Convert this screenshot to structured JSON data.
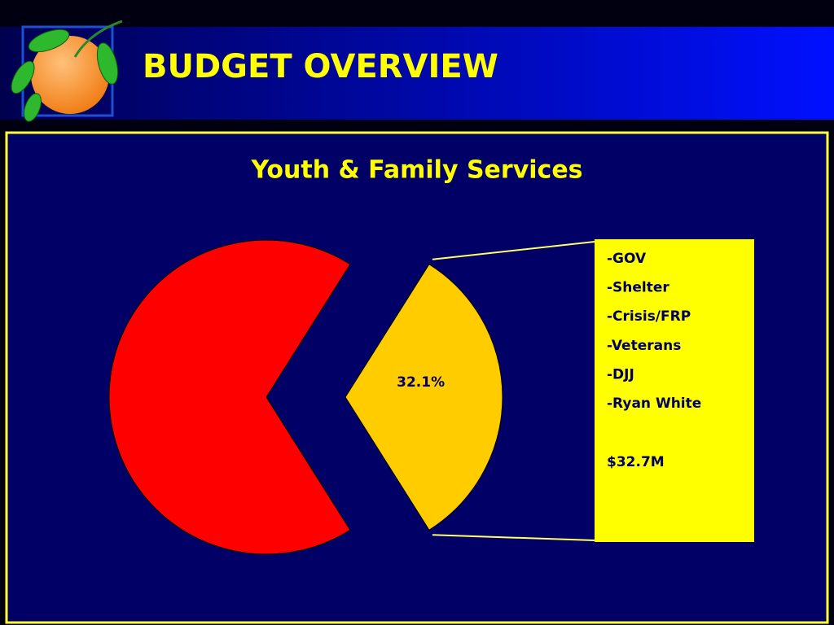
{
  "header": {
    "title": "BUDGET OVERVIEW"
  },
  "chart_data": {
    "type": "pie",
    "title": "Youth & Family Services",
    "values": [
      67.9,
      32.1
    ],
    "value_labels": [
      null,
      "32.1%"
    ],
    "colors": [
      "#ff0000",
      "#ffcc00"
    ],
    "callout": {
      "items": [
        "-GOV",
        "-Shelter",
        "-Crisis/FRP",
        "-Veterans",
        "-DJJ",
        "-Ryan White"
      ],
      "amount": "$32.7M"
    }
  }
}
